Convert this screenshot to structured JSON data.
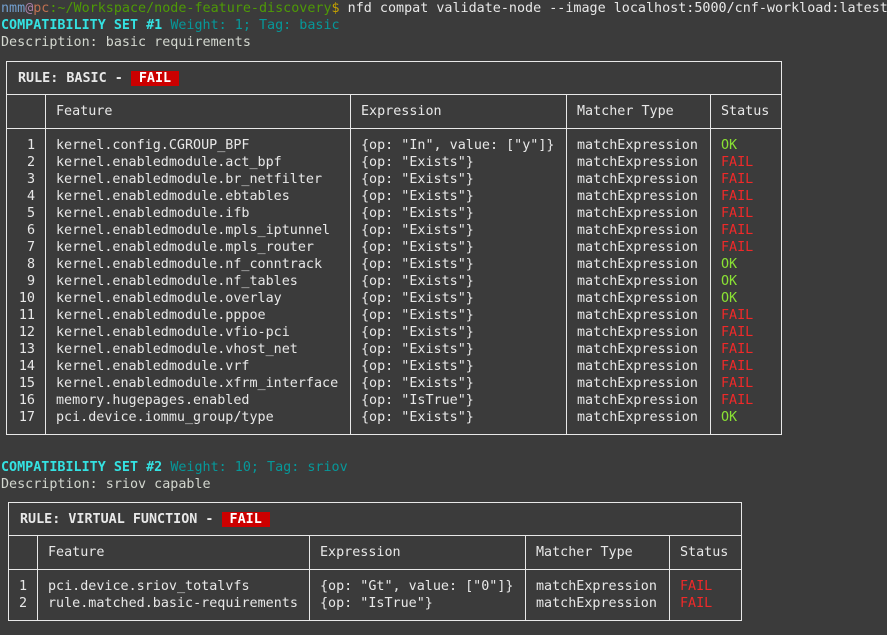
{
  "prompt": {
    "user": "nmm",
    "at": "@",
    "host": "pc",
    "path": ":~/Workspace/node-feature-discovery",
    "dollar": "$ ",
    "command": "nfd compat validate-node --image localhost:5000/cnf-workload:latest"
  },
  "colors": {
    "ok": "#8ae234",
    "fail": "#ef2929",
    "badge": "#cc0000",
    "set_heading": "#34e2e2"
  },
  "sets": [
    {
      "heading": "COMPATIBILITY SET #1",
      "meta": "Weight: 1; Tag: basic",
      "description": "Description: basic requirements",
      "rule": {
        "label": "RULE: BASIC - ",
        "status": "FAIL",
        "columns": [
          "",
          "Feature",
          "Expression",
          "Matcher Type",
          "Status"
        ],
        "rows": [
          [
            "1",
            "kernel.config.CGROUP_BPF",
            "{op: \"In\", value: [\"y\"]}",
            "matchExpression",
            "OK"
          ],
          [
            "2",
            "kernel.enabledmodule.act_bpf",
            "{op: \"Exists\"}",
            "matchExpression",
            "FAIL"
          ],
          [
            "3",
            "kernel.enabledmodule.br_netfilter",
            "{op: \"Exists\"}",
            "matchExpression",
            "FAIL"
          ],
          [
            "4",
            "kernel.enabledmodule.ebtables",
            "{op: \"Exists\"}",
            "matchExpression",
            "FAIL"
          ],
          [
            "5",
            "kernel.enabledmodule.ifb",
            "{op: \"Exists\"}",
            "matchExpression",
            "FAIL"
          ],
          [
            "6",
            "kernel.enabledmodule.mpls_iptunnel",
            "{op: \"Exists\"}",
            "matchExpression",
            "FAIL"
          ],
          [
            "7",
            "kernel.enabledmodule.mpls_router",
            "{op: \"Exists\"}",
            "matchExpression",
            "FAIL"
          ],
          [
            "8",
            "kernel.enabledmodule.nf_conntrack",
            "{op: \"Exists\"}",
            "matchExpression",
            "OK"
          ],
          [
            "9",
            "kernel.enabledmodule.nf_tables",
            "{op: \"Exists\"}",
            "matchExpression",
            "OK"
          ],
          [
            "10",
            "kernel.enabledmodule.overlay",
            "{op: \"Exists\"}",
            "matchExpression",
            "OK"
          ],
          [
            "11",
            "kernel.enabledmodule.pppoe",
            "{op: \"Exists\"}",
            "matchExpression",
            "FAIL"
          ],
          [
            "12",
            "kernel.enabledmodule.vfio-pci",
            "{op: \"Exists\"}",
            "matchExpression",
            "FAIL"
          ],
          [
            "13",
            "kernel.enabledmodule.vhost_net",
            "{op: \"Exists\"}",
            "matchExpression",
            "FAIL"
          ],
          [
            "14",
            "kernel.enabledmodule.vrf",
            "{op: \"Exists\"}",
            "matchExpression",
            "FAIL"
          ],
          [
            "15",
            "kernel.enabledmodule.xfrm_interface",
            "{op: \"Exists\"}",
            "matchExpression",
            "FAIL"
          ],
          [
            "16",
            "memory.hugepages.enabled",
            "{op: \"IsTrue\"}",
            "matchExpression",
            "FAIL"
          ],
          [
            "17",
            "pci.device.iommu_group/type",
            "{op: \"Exists\"}",
            "matchExpression",
            "OK"
          ]
        ]
      }
    },
    {
      "heading": "COMPATIBILITY SET #2",
      "meta": "Weight: 10; Tag: sriov",
      "description": "Description: sriov capable",
      "rule": {
        "label": "RULE: VIRTUAL FUNCTION - ",
        "status": "FAIL",
        "columns": [
          "",
          "Feature",
          "Expression",
          "Matcher Type",
          "Status"
        ],
        "rows": [
          [
            "1",
            "pci.device.sriov_totalvfs",
            "{op: \"Gt\", value: [\"0\"]}",
            "matchExpression",
            "FAIL"
          ],
          [
            "2",
            "rule.matched.basic-requirements",
            "{op: \"IsTrue\"}",
            "matchExpression",
            "FAIL"
          ]
        ]
      }
    }
  ]
}
